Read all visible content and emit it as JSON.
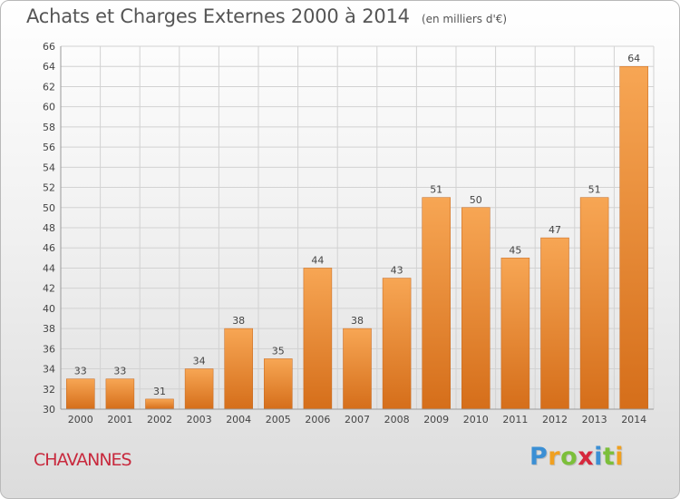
{
  "title": "Achats et Charges Externes 2000 à 2014",
  "subtitle": "(en milliers d'€)",
  "commune": "CHAVANNES",
  "logo": {
    "letters": [
      "P",
      "r",
      "o",
      "x",
      "i",
      "t",
      "i"
    ],
    "colors": [
      "#3b8fd4",
      "#f0a020",
      "#7cbf3a",
      "#d6283d",
      "#3b8fd4",
      "#7cbf3a",
      "#f0a020"
    ]
  },
  "colors": {
    "bar_top": "#f7a654",
    "bar_bottom": "#d56e1a",
    "grid": "#d2d2d2",
    "axis_text": "#444444"
  },
  "chart_data": {
    "type": "bar",
    "categories": [
      "2000",
      "2001",
      "2002",
      "2003",
      "2004",
      "2005",
      "2006",
      "2007",
      "2008",
      "2009",
      "2010",
      "2011",
      "2012",
      "2013",
      "2014"
    ],
    "values": [
      33,
      33,
      31,
      34,
      38,
      35,
      44,
      38,
      43,
      51,
      50,
      45,
      47,
      51,
      64
    ],
    "ylim": [
      30,
      66
    ],
    "ytick_step": 2,
    "yticks": [
      "30",
      "32",
      "34",
      "36",
      "38",
      "40",
      "42",
      "44",
      "46",
      "48",
      "50",
      "52",
      "54",
      "56",
      "58",
      "60",
      "62",
      "64",
      "66"
    ],
    "xlabel": "",
    "ylabel": "",
    "grid": true,
    "data_labels": true
  }
}
